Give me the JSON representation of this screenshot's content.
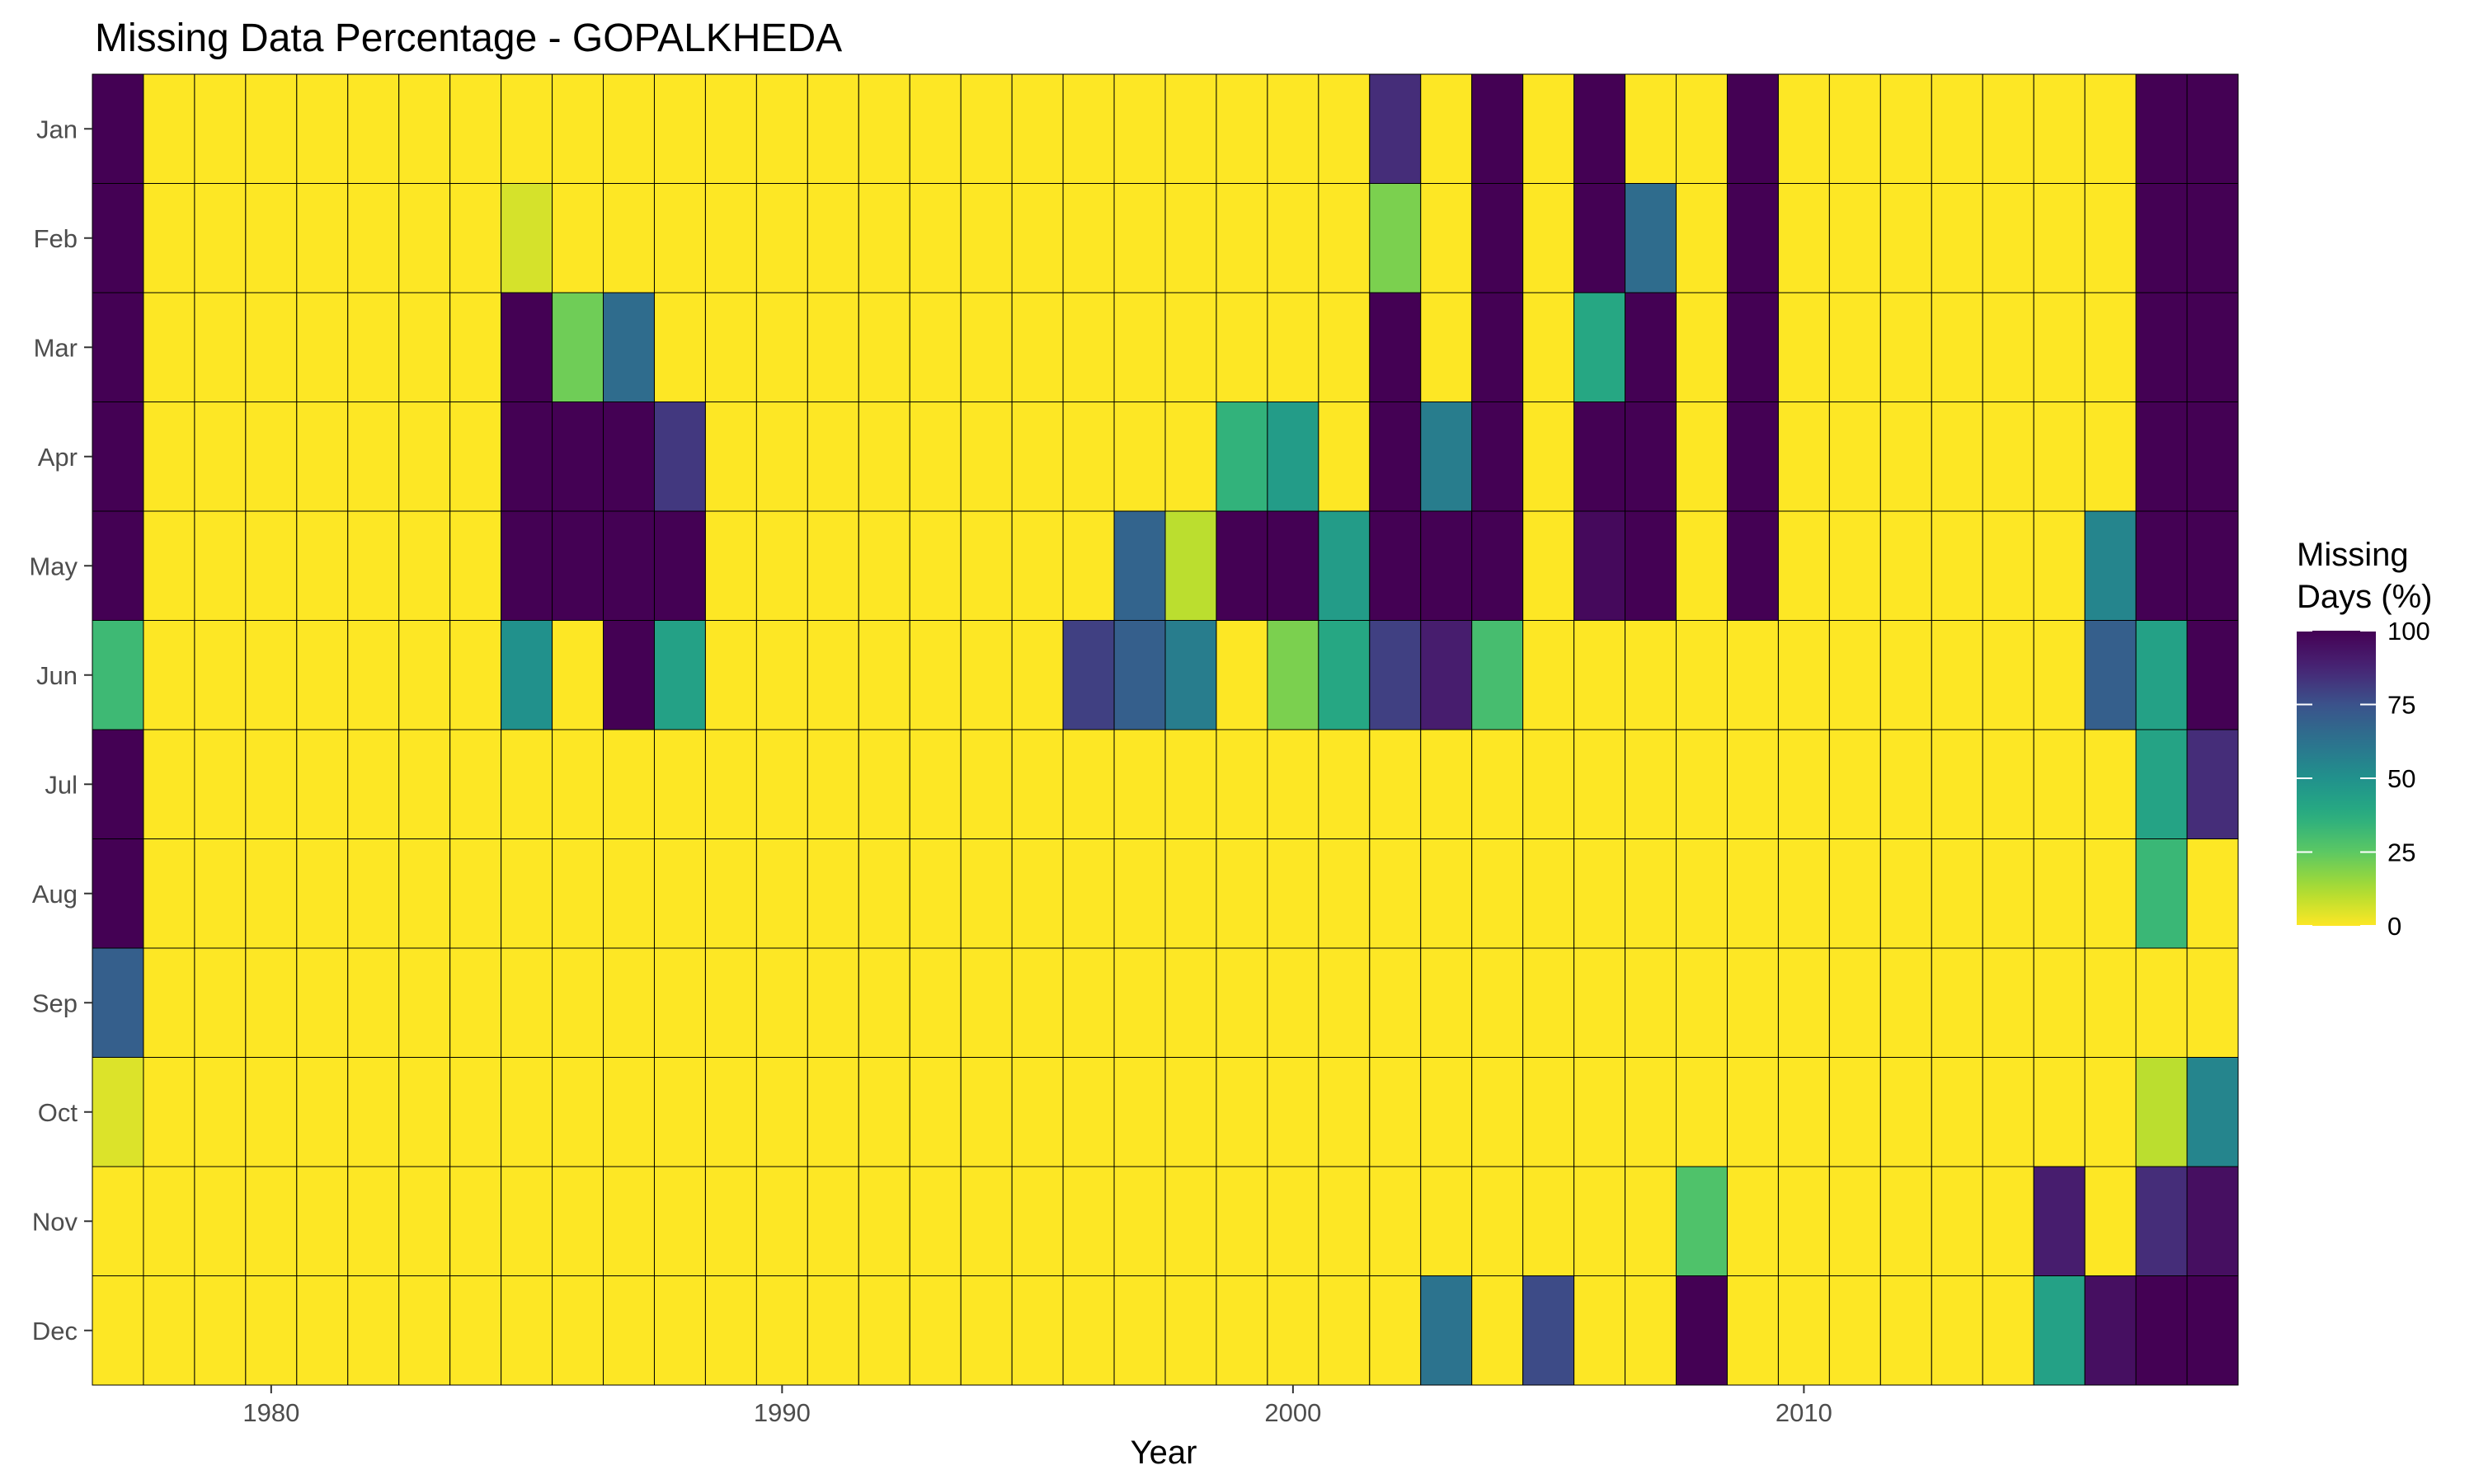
{
  "chart_data": {
    "type": "heatmap",
    "title": "Missing Data Percentage - GOPALKHEDA",
    "xlabel": "Year",
    "ylabel": "",
    "years": [
      1977,
      1978,
      1979,
      1980,
      1981,
      1982,
      1983,
      1984,
      1985,
      1986,
      1987,
      1988,
      1989,
      1990,
      1991,
      1992,
      1993,
      1994,
      1995,
      1996,
      1997,
      1998,
      1999,
      2000,
      2001,
      2002,
      2003,
      2004,
      2005,
      2006,
      2007,
      2008,
      2009,
      2010,
      2011,
      2012,
      2013,
      2014,
      2015,
      2016,
      2017,
      2018
    ],
    "months": [
      "Jan",
      "Feb",
      "Mar",
      "Apr",
      "May",
      "Jun",
      "Jul",
      "Aug",
      "Sep",
      "Oct",
      "Nov",
      "Dec"
    ],
    "x_ticks": [
      1980,
      1990,
      2000,
      2010
    ],
    "values": [
      [
        100,
        0,
        0,
        0,
        0,
        0,
        0,
        0,
        0,
        0,
        0,
        0,
        0,
        0,
        0,
        0,
        0,
        0,
        0,
        0,
        0,
        0,
        0,
        0,
        0,
        85,
        0,
        100,
        0,
        100,
        0,
        0,
        100,
        0,
        0,
        0,
        0,
        0,
        0,
        0,
        100,
        100
      ],
      [
        100,
        0,
        0,
        0,
        0,
        0,
        0,
        0,
        6,
        0,
        0,
        0,
        0,
        0,
        0,
        0,
        0,
        0,
        0,
        0,
        0,
        0,
        0,
        0,
        0,
        20,
        0,
        100,
        0,
        100,
        65,
        0,
        100,
        0,
        0,
        0,
        0,
        0,
        0,
        0,
        100,
        100
      ],
      [
        100,
        0,
        0,
        0,
        0,
        0,
        0,
        0,
        100,
        22,
        65,
        0,
        0,
        0,
        0,
        0,
        0,
        0,
        0,
        0,
        0,
        0,
        0,
        0,
        0,
        100,
        0,
        100,
        0,
        40,
        100,
        0,
        100,
        0,
        0,
        0,
        0,
        0,
        0,
        0,
        100,
        100
      ],
      [
        100,
        0,
        0,
        0,
        0,
        0,
        0,
        0,
        100,
        100,
        100,
        82,
        0,
        0,
        0,
        0,
        0,
        0,
        0,
        0,
        0,
        0,
        35,
        45,
        0,
        100,
        58,
        100,
        0,
        100,
        100,
        0,
        100,
        0,
        0,
        0,
        0,
        0,
        0,
        0,
        100,
        100
      ],
      [
        100,
        0,
        0,
        0,
        0,
        0,
        0,
        0,
        100,
        100,
        100,
        100,
        0,
        0,
        0,
        0,
        0,
        0,
        0,
        0,
        68,
        10,
        100,
        100,
        45,
        100,
        100,
        100,
        0,
        97,
        100,
        0,
        100,
        0,
        0,
        0,
        0,
        0,
        0,
        55,
        100,
        100
      ],
      [
        32,
        0,
        0,
        0,
        0,
        0,
        0,
        0,
        50,
        0,
        100,
        43,
        0,
        0,
        0,
        0,
        0,
        0,
        0,
        80,
        70,
        58,
        0,
        20,
        40,
        80,
        90,
        30,
        0,
        0,
        0,
        0,
        0,
        0,
        0,
        0,
        0,
        0,
        0,
        70,
        43,
        100
      ],
      [
        100,
        0,
        0,
        0,
        0,
        0,
        0,
        0,
        0,
        0,
        0,
        0,
        0,
        0,
        0,
        0,
        0,
        0,
        0,
        0,
        0,
        0,
        0,
        0,
        0,
        0,
        0,
        0,
        0,
        0,
        0,
        0,
        0,
        0,
        0,
        0,
        0,
        0,
        0,
        0,
        42,
        85
      ],
      [
        100,
        0,
        0,
        0,
        0,
        0,
        0,
        0,
        0,
        0,
        0,
        0,
        0,
        0,
        0,
        0,
        0,
        0,
        0,
        0,
        0,
        0,
        0,
        0,
        0,
        0,
        0,
        0,
        0,
        0,
        0,
        0,
        0,
        0,
        0,
        0,
        0,
        0,
        0,
        0,
        33,
        0
      ],
      [
        70,
        0,
        0,
        0,
        0,
        0,
        0,
        0,
        0,
        0,
        0,
        0,
        0,
        0,
        0,
        0,
        0,
        0,
        0,
        0,
        0,
        0,
        0,
        0,
        0,
        0,
        0,
        0,
        0,
        0,
        0,
        0,
        0,
        0,
        0,
        0,
        0,
        0,
        0,
        0,
        0,
        0
      ],
      [
        5,
        0,
        0,
        0,
        0,
        0,
        0,
        0,
        0,
        0,
        0,
        0,
        0,
        0,
        0,
        0,
        0,
        0,
        0,
        0,
        0,
        0,
        0,
        0,
        0,
        0,
        0,
        0,
        0,
        0,
        0,
        0,
        0,
        0,
        0,
        0,
        0,
        0,
        0,
        0,
        10,
        55
      ],
      [
        0,
        0,
        0,
        0,
        0,
        0,
        0,
        0,
        0,
        0,
        0,
        0,
        0,
        0,
        0,
        0,
        0,
        0,
        0,
        0,
        0,
        0,
        0,
        0,
        0,
        0,
        0,
        0,
        0,
        0,
        0,
        28,
        0,
        0,
        0,
        0,
        0,
        0,
        90,
        0,
        85,
        95
      ],
      [
        0,
        0,
        0,
        0,
        0,
        0,
        0,
        0,
        0,
        0,
        0,
        0,
        0,
        0,
        0,
        0,
        0,
        0,
        0,
        0,
        0,
        0,
        0,
        0,
        0,
        0,
        62,
        0,
        77,
        0,
        0,
        100,
        0,
        0,
        0,
        0,
        0,
        0,
        43,
        95,
        100,
        100
      ]
    ],
    "zlim": [
      0,
      100
    ],
    "colorscale": "viridis-reversed",
    "legend": {
      "title_line1": "Missing",
      "title_line2": "Days (%)",
      "ticks": [
        100,
        75,
        50,
        25,
        0
      ],
      "placement": "right"
    },
    "grid": false
  }
}
